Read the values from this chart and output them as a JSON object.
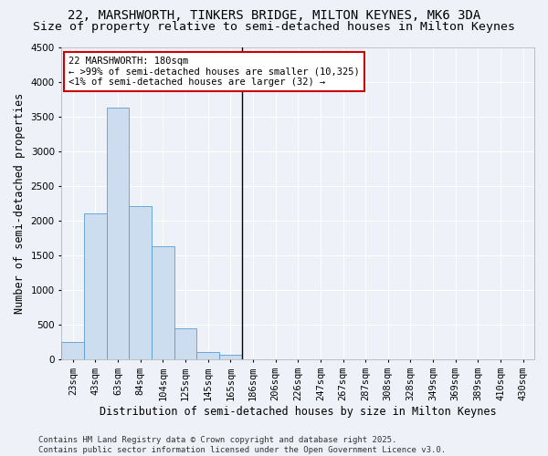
{
  "title_line1": "22, MARSHWORTH, TINKERS BRIDGE, MILTON KEYNES, MK6 3DA",
  "title_line2": "Size of property relative to semi-detached houses in Milton Keynes",
  "xlabel": "Distribution of semi-detached houses by size in Milton Keynes",
  "ylabel": "Number of semi-detached properties",
  "categories": [
    "23sqm",
    "43sqm",
    "63sqm",
    "84sqm",
    "104sqm",
    "125sqm",
    "145sqm",
    "165sqm",
    "186sqm",
    "206sqm",
    "226sqm",
    "247sqm",
    "267sqm",
    "287sqm",
    "308sqm",
    "328sqm",
    "349sqm",
    "369sqm",
    "389sqm",
    "410sqm",
    "430sqm"
  ],
  "values": [
    250,
    2100,
    3625,
    2200,
    1625,
    450,
    100,
    60,
    0,
    0,
    0,
    0,
    0,
    0,
    0,
    0,
    0,
    0,
    0,
    0,
    0
  ],
  "bar_color": "#ccddf0",
  "bar_edge_color": "#5b9bd5",
  "vline_index": 8,
  "vline_color": "#000000",
  "ylim": [
    0,
    4500
  ],
  "yticks": [
    0,
    500,
    1000,
    1500,
    2000,
    2500,
    3000,
    3500,
    4000,
    4500
  ],
  "annotation_line1": "22 MARSHWORTH: 180sqm",
  "annotation_line2": "← >99% of semi-detached houses are smaller (10,325)",
  "annotation_line3": "<1% of semi-detached houses are larger (32) →",
  "annotation_box_color": "#ffffff",
  "annotation_box_edge": "#cc0000",
  "footer_line1": "Contains HM Land Registry data © Crown copyright and database right 2025.",
  "footer_line2": "Contains public sector information licensed under the Open Government Licence v3.0.",
  "background_color": "#eef2f8",
  "grid_color": "#ffffff",
  "title_fontsize": 10,
  "subtitle_fontsize": 9.5,
  "axis_label_fontsize": 8.5,
  "tick_fontsize": 7.5,
  "annotation_fontsize": 7.5,
  "footer_fontsize": 6.5
}
